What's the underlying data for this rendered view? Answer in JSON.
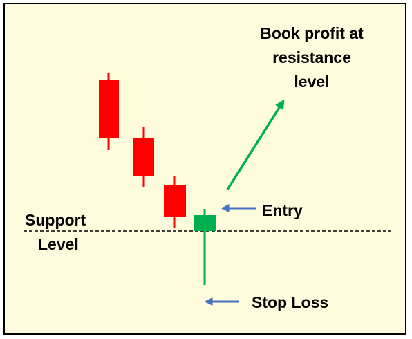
{
  "colors": {
    "background": "#fffbdd",
    "border": "#000000",
    "bearish": "#ff0000",
    "bullish": "#00b050",
    "pointer_arrow": "#4472c4",
    "support_line": "#000000"
  },
  "labels": {
    "target_line1": "Book profit at",
    "target_line2": "resistance",
    "target_line3": "level",
    "entry": "Entry",
    "support_line1": "Support",
    "support_line2": "Level",
    "stop_loss": "Stop Loss"
  },
  "candles": [
    {
      "type": "bearish"
    },
    {
      "type": "bearish"
    },
    {
      "type": "bearish"
    },
    {
      "type": "bullish"
    }
  ],
  "icons": {
    "entry_pointer": "left-arrow-icon",
    "stop_loss_pointer": "left-arrow-icon",
    "target_arrow": "up-right-arrow-icon"
  }
}
